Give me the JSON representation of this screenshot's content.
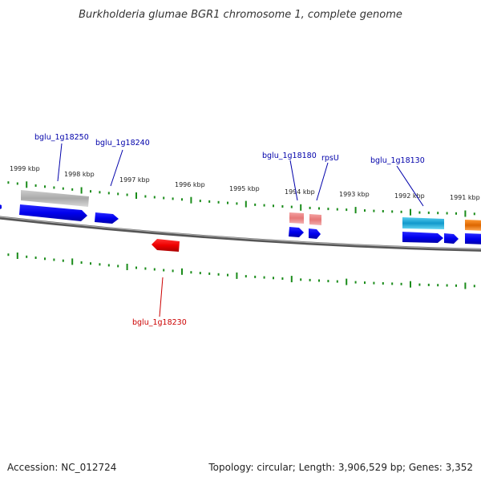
{
  "title": "Burkholderia glumae BGR1 chromosome 1, complete genome",
  "ticks": [
    "1999 kbp",
    "1998 kbp",
    "1997 kbp",
    "1996 kbp",
    "1995 kbp",
    "1994 kbp",
    "1993 kbp",
    "1992 kbp",
    "1991 kbp"
  ],
  "gene_labels": [
    "bglu_1g18250",
    "bglu_1g18240",
    "bglu_1g18180",
    "rpsU",
    "bglu_1g18130",
    "bglu_1g18230"
  ],
  "footer": {
    "accession": "Accession: NC_012724",
    "info": "Topology: circular; Length: 3,906,529 bp; Genes: 3,352"
  },
  "colors": {
    "label_blue": "#0000aa",
    "label_red": "#cc0000",
    "tick_green": "#1a8c1a",
    "backbone": "#777777",
    "cds_blue": "#0000ee",
    "cds_red": "#ee0000",
    "rna_pink": "#ee8888",
    "pseudo_gray": "#aaaaaa",
    "cyan": "#22aadd",
    "orange": "#ee7700"
  }
}
